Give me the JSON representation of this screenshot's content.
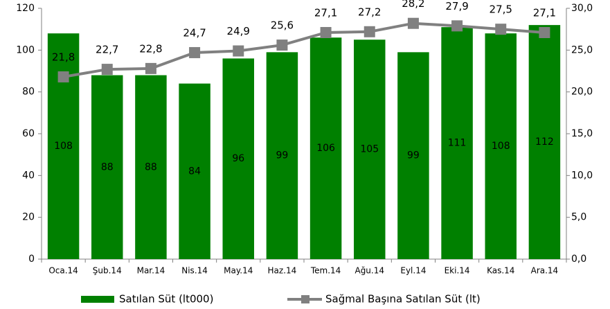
{
  "chart_data": {
    "type": "bar",
    "categories": [
      "Oca.14",
      "Şub.14",
      "Mar.14",
      "Nis.14",
      "May.14",
      "Haz.14",
      "Tem.14",
      "Ağu.14",
      "Eyl.14",
      "Eki.14",
      "Kas.14",
      "Ara.14"
    ],
    "series": [
      {
        "name": "Satılan Süt (lt000)",
        "color": "#008000",
        "values": [
          108,
          88,
          88,
          84,
          96,
          99,
          106,
          105,
          99,
          111,
          108,
          112
        ]
      },
      {
        "name": "Sağmal Başına Satılan Süt (lt)",
        "type": "line",
        "axis": "y2",
        "color": "#808080",
        "values": [
          21.8,
          22.7,
          22.8,
          24.7,
          24.9,
          25.6,
          27.1,
          27.2,
          28.2,
          27.9,
          27.5,
          27.1
        ],
        "value_labels": [
          "21,8",
          "22,7",
          "22,8",
          "24,7",
          "24,9",
          "25,6",
          "27,1",
          "27,2",
          "28,2",
          "27,9",
          "27,5",
          "27,1"
        ]
      }
    ],
    "ylim": [
      0,
      120
    ],
    "yticks": [
      0,
      20,
      40,
      60,
      80,
      100,
      120
    ],
    "y2lim": [
      0,
      30
    ],
    "y2ticks": [
      {
        "value": 0,
        "label": "0,0"
      },
      {
        "value": 5,
        "label": "5,0"
      },
      {
        "value": 10,
        "label": "10,0"
      },
      {
        "value": 15,
        "label": "15,0"
      },
      {
        "value": 20,
        "label": "20,0"
      },
      {
        "value": 25,
        "label": "25,0"
      },
      {
        "value": 30,
        "label": "30,0"
      }
    ],
    "legend": "bottom"
  }
}
